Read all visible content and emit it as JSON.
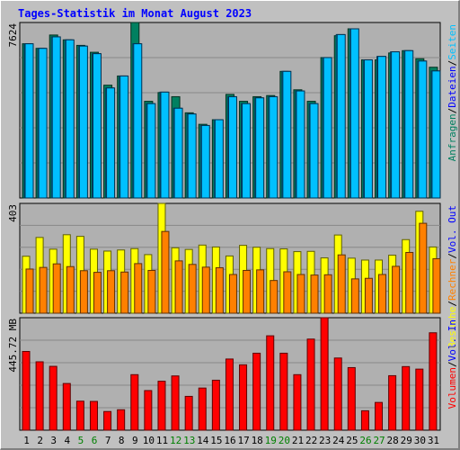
{
  "title": "Tages-Statistik im Monat August 2023",
  "colors": {
    "background": "#c0c0c0",
    "plot": "#b0b0b0",
    "grid": "#888888",
    "anfragen": "#008060",
    "dateien": "#00e0ff",
    "seiten": "#00c0ff",
    "besuche": "#ffff00",
    "rechner": "#ff8000",
    "volumen": "#ff0000",
    "weekend_label": "#008000",
    "label": "#000000"
  },
  "chart_data": [
    {
      "type": "bar",
      "name": "panel-requests",
      "y_max_label": "7624",
      "ylim": [
        0,
        7624
      ],
      "grid": true,
      "legend_right": [
        {
          "text": "Anfragen",
          "color": "#008060"
        },
        {
          "text": "/",
          "color": "#000000"
        },
        {
          "text": "Dateien",
          "color": "#0000ff"
        },
        {
          "text": "/",
          "color": "#000000"
        },
        {
          "text": "Seiten",
          "color": "#00c0ff"
        }
      ],
      "series": [
        {
          "name": "Anfragen",
          "values": [
            6700,
            6500,
            7080,
            6870,
            6630,
            6330,
            4900,
            5300,
            7624,
            4200,
            4580,
            4400,
            3700,
            3200,
            3400,
            4500,
            4200,
            4400,
            4450,
            5500,
            4700,
            4200,
            6100,
            7050,
            7350,
            6000,
            6000,
            6300,
            6400,
            6050,
            5680
          ]
        },
        {
          "name": "Dateien",
          "values": [
            6700,
            6500,
            7000,
            6870,
            6600,
            6270,
            4780,
            5300,
            6700,
            4100,
            4600,
            3900,
            3650,
            3150,
            3400,
            4400,
            4100,
            4350,
            4400,
            5500,
            4650,
            4100,
            6100,
            7100,
            7350,
            6000,
            6150,
            6350,
            6400,
            5950,
            5520
          ]
        },
        {
          "name": "Seiten",
          "values": [
            6700,
            6500,
            7000,
            6870,
            6600,
            6270,
            4780,
            5300,
            6700,
            4100,
            4600,
            3900,
            3650,
            3150,
            3400,
            4400,
            4100,
            4350,
            4400,
            5500,
            4650,
            4100,
            6100,
            7100,
            7350,
            6000,
            6150,
            6350,
            6400,
            5950,
            5520
          ]
        }
      ]
    },
    {
      "type": "bar",
      "name": "panel-visits",
      "y_max_label": "403",
      "ylim": [
        0,
        403
      ],
      "grid": true,
      "legend_right": [
        {
          "text": "Besuche",
          "color": "#ffff00"
        },
        {
          "text": "/",
          "color": "#000000"
        },
        {
          "text": "Rechner",
          "color": "#ff8000"
        },
        {
          "text": "/",
          "color": "#000000"
        },
        {
          "text": "Vol. Out",
          "color": "#0000ff"
        }
      ],
      "series": [
        {
          "name": "Besuche",
          "values": [
            209,
            278,
            235,
            288,
            282,
            235,
            228,
            232,
            237,
            215,
            403,
            240,
            234,
            250,
            243,
            210,
            249,
            242,
            237,
            236,
            226,
            227,
            203,
            287,
            202,
            195,
            195,
            213,
            270,
            374,
            243
          ]
        },
        {
          "name": "Rechner",
          "values": [
            162,
            168,
            181,
            171,
            156,
            150,
            156,
            151,
            182,
            157,
            300,
            192,
            179,
            169,
            167,
            142,
            157,
            159,
            120,
            152,
            142,
            140,
            141,
            214,
            126,
            128,
            142,
            172,
            223,
            330,
            200
          ]
        }
      ]
    },
    {
      "type": "bar",
      "name": "panel-volume",
      "y_max_label": "445.72 MB",
      "ylim": [
        0,
        445.72
      ],
      "grid": true,
      "legend_right": [
        {
          "text": "Volumen",
          "color": "#ff0000"
        },
        {
          "text": "/",
          "color": "#000000"
        },
        {
          "text": "Vol. In",
          "color": "#0000ff"
        }
      ],
      "series": [
        {
          "name": "Volumen",
          "values": [
            312,
            271,
            253,
            185,
            115,
            114,
            74,
            81,
            220,
            157,
            194,
            215,
            134,
            167,
            198,
            282,
            259,
            305,
            374,
            305,
            220,
            361,
            445.72,
            286,
            248,
            77,
            110,
            216,
            252,
            242,
            386
          ]
        }
      ]
    }
  ],
  "days": [
    "1",
    "2",
    "3",
    "4",
    "5",
    "6",
    "7",
    "8",
    "9",
    "10",
    "11",
    "12",
    "13",
    "14",
    "15",
    "16",
    "17",
    "18",
    "19",
    "20",
    "21",
    "22",
    "23",
    "24",
    "25",
    "26",
    "27",
    "28",
    "29",
    "30",
    "31"
  ],
  "weekend_days": [
    "5",
    "6",
    "12",
    "13",
    "19",
    "20",
    "26",
    "27"
  ]
}
